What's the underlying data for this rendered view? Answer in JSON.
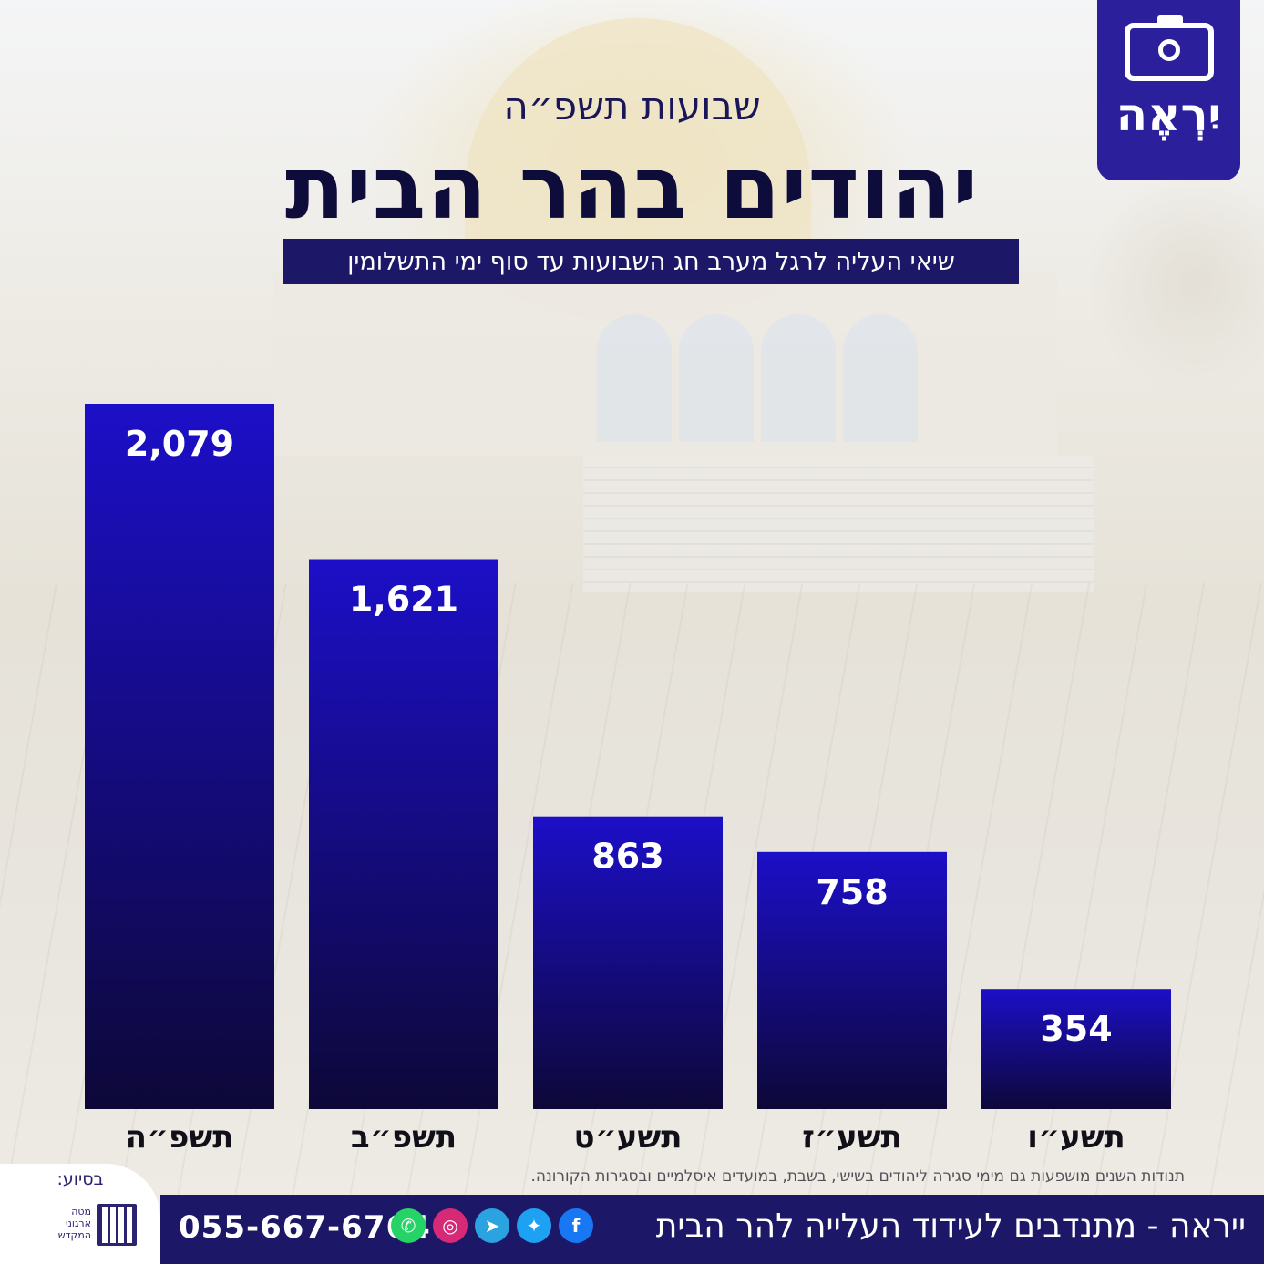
{
  "header": {
    "subtitle": "שבועות תשפ״ה",
    "title": "יהודים בהר הבית",
    "tagline": "שיאי העליה לרגל מערב חג השבועות עד סוף ימי התשלומין"
  },
  "logo": {
    "text": "יִרְאֶה",
    "icon": "camera-icon"
  },
  "chart_data": {
    "type": "bar",
    "categories": [
      "תשפ״ה",
      "תשפ״ב",
      "תשע״ט",
      "תשע״ז",
      "תשע״ו"
    ],
    "values": [
      2079,
      1621,
      863,
      758,
      354
    ],
    "value_labels": [
      "2,079",
      "1,621",
      "863",
      "758",
      "354"
    ],
    "title": "",
    "xlabel": "",
    "ylabel": "",
    "ylim": [
      0,
      2079
    ],
    "grid": false,
    "bar_color_top": "#1c0fc8",
    "bar_color_bottom": "#0d0838"
  },
  "footnote": "תנודות השנים מושפעות גם מימי סגירה ליהודים בשישי, בשבת, במועדים איסלמיים ובסגירות הקורונה.",
  "footer": {
    "slogan": "ייראה - מתנדבים לעידוד העלייה להר הבית",
    "phone": "055-667-6764",
    "social_icons": [
      "facebook-icon",
      "twitter-icon",
      "telegram-icon",
      "instagram-icon",
      "whatsapp-icon"
    ]
  },
  "sponsor": {
    "label": "בסיוע:",
    "org": "מטה ארגוני המקדש"
  },
  "colors": {
    "navy": "#1d1768",
    "logo_bg": "#2b1f9b",
    "title": "#0e0c3a"
  }
}
